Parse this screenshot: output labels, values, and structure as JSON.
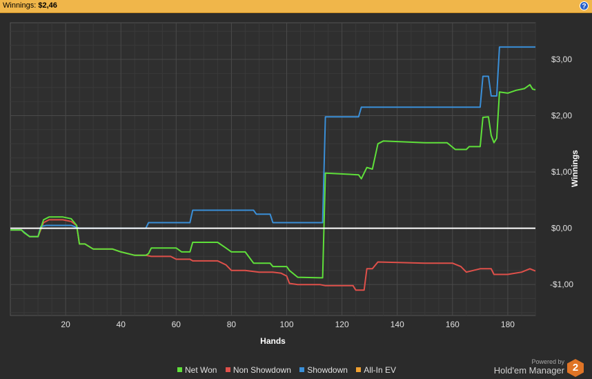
{
  "header": {
    "label": "Winnings:",
    "value": "$2,46",
    "help_icon": "?"
  },
  "brand": {
    "powered_by": "Powered by",
    "name": "Hold'em Manager",
    "logo_text": "2"
  },
  "colors": {
    "net_won": "#5fe03a",
    "non_showdown": "#e0504a",
    "showdown": "#3a8fd8",
    "all_in_ev": "#f0a030",
    "zero_line": "#ffffff",
    "grid": "#4a4a4a",
    "plot_bg": "#2f2f2f"
  },
  "chart_data": {
    "type": "line",
    "xlabel": "Hands",
    "ylabel": "Winnings",
    "xlim": [
      0,
      190
    ],
    "ylim": [
      -1.55,
      3.65
    ],
    "x_ticks": [
      20,
      40,
      60,
      80,
      100,
      120,
      140,
      160,
      180
    ],
    "x_tick_labels": [
      "20",
      "40",
      "60",
      "80",
      "100",
      "120",
      "140",
      "160",
      "180"
    ],
    "y_ticks": [
      -1,
      0,
      1,
      2,
      3
    ],
    "y_tick_labels": [
      "-$1,00",
      "$0,00",
      "$1,00",
      "$2,00",
      "$3,00"
    ],
    "grid": true,
    "legend_position": "bottom-center",
    "series": [
      {
        "name": "Net Won",
        "points": [
          [
            0,
            -0.03
          ],
          [
            4,
            -0.03
          ],
          [
            5,
            -0.08
          ],
          [
            7,
            -0.15
          ],
          [
            10,
            -0.15
          ],
          [
            12,
            0.15
          ],
          [
            14,
            0.2
          ],
          [
            19,
            0.2
          ],
          [
            22,
            0.17
          ],
          [
            24,
            0.05
          ],
          [
            25,
            -0.28
          ],
          [
            27,
            -0.28
          ],
          [
            30,
            -0.37
          ],
          [
            37,
            -0.37
          ],
          [
            40,
            -0.42
          ],
          [
            45,
            -0.48
          ],
          [
            49,
            -0.48
          ],
          [
            50,
            -0.45
          ],
          [
            51,
            -0.35
          ],
          [
            60,
            -0.35
          ],
          [
            62,
            -0.42
          ],
          [
            65,
            -0.42
          ],
          [
            66,
            -0.25
          ],
          [
            75,
            -0.25
          ],
          [
            78,
            -0.35
          ],
          [
            80,
            -0.42
          ],
          [
            85,
            -0.42
          ],
          [
            88,
            -0.62
          ],
          [
            94,
            -0.62
          ],
          [
            95,
            -0.68
          ],
          [
            100,
            -0.68
          ],
          [
            101,
            -0.75
          ],
          [
            104,
            -0.87
          ],
          [
            112,
            -0.88
          ],
          [
            113,
            -0.88
          ],
          [
            114,
            0.98
          ],
          [
            126,
            0.95
          ],
          [
            127,
            0.88
          ],
          [
            129,
            1.08
          ],
          [
            131,
            1.05
          ],
          [
            133,
            1.5
          ],
          [
            135,
            1.55
          ],
          [
            150,
            1.52
          ],
          [
            158,
            1.52
          ],
          [
            159,
            1.48
          ],
          [
            161,
            1.4
          ],
          [
            165,
            1.4
          ],
          [
            166,
            1.45
          ],
          [
            170,
            1.45
          ],
          [
            171,
            1.97
          ],
          [
            173,
            1.98
          ],
          [
            174,
            1.65
          ],
          [
            175,
            1.52
          ],
          [
            176,
            1.6
          ],
          [
            177,
            2.42
          ],
          [
            180,
            2.4
          ],
          [
            183,
            2.45
          ],
          [
            186,
            2.48
          ],
          [
            188,
            2.55
          ],
          [
            189,
            2.47
          ],
          [
            190,
            2.46
          ]
        ]
      },
      {
        "name": "Non Showdown",
        "points": [
          [
            0,
            -0.03
          ],
          [
            4,
            -0.03
          ],
          [
            5,
            -0.08
          ],
          [
            7,
            -0.15
          ],
          [
            10,
            -0.15
          ],
          [
            12,
            0.1
          ],
          [
            14,
            0.15
          ],
          [
            19,
            0.15
          ],
          [
            22,
            0.12
          ],
          [
            24,
            0.05
          ],
          [
            25,
            -0.28
          ],
          [
            27,
            -0.28
          ],
          [
            30,
            -0.37
          ],
          [
            37,
            -0.37
          ],
          [
            40,
            -0.42
          ],
          [
            45,
            -0.48
          ],
          [
            49,
            -0.48
          ],
          [
            51,
            -0.5
          ],
          [
            58,
            -0.5
          ],
          [
            60,
            -0.55
          ],
          [
            65,
            -0.55
          ],
          [
            66,
            -0.58
          ],
          [
            75,
            -0.58
          ],
          [
            78,
            -0.65
          ],
          [
            80,
            -0.75
          ],
          [
            85,
            -0.75
          ],
          [
            90,
            -0.78
          ],
          [
            95,
            -0.78
          ],
          [
            98,
            -0.8
          ],
          [
            100,
            -0.85
          ],
          [
            101,
            -0.98
          ],
          [
            104,
            -1.0
          ],
          [
            112,
            -1.0
          ],
          [
            114,
            -1.02
          ],
          [
            124,
            -1.02
          ],
          [
            125,
            -1.1
          ],
          [
            128,
            -1.1
          ],
          [
            129,
            -0.72
          ],
          [
            131,
            -0.72
          ],
          [
            133,
            -0.6
          ],
          [
            150,
            -0.62
          ],
          [
            160,
            -0.62
          ],
          [
            163,
            -0.68
          ],
          [
            165,
            -0.78
          ],
          [
            170,
            -0.72
          ],
          [
            174,
            -0.72
          ],
          [
            175,
            -0.82
          ],
          [
            180,
            -0.82
          ],
          [
            185,
            -0.78
          ],
          [
            188,
            -0.72
          ],
          [
            190,
            -0.76
          ]
        ]
      },
      {
        "name": "Showdown",
        "points": [
          [
            0,
            -0.03
          ],
          [
            4,
            -0.03
          ],
          [
            7,
            -0.15
          ],
          [
            10,
            -0.15
          ],
          [
            11,
            0.03
          ],
          [
            13,
            0.05
          ],
          [
            22,
            0.05
          ],
          [
            25,
            0.0
          ],
          [
            49,
            0.0
          ],
          [
            50,
            0.1
          ],
          [
            65,
            0.1
          ],
          [
            66,
            0.32
          ],
          [
            88,
            0.32
          ],
          [
            89,
            0.25
          ],
          [
            94,
            0.25
          ],
          [
            95,
            0.1
          ],
          [
            113,
            0.1
          ],
          [
            114,
            1.98
          ],
          [
            126,
            1.98
          ],
          [
            127,
            2.15
          ],
          [
            170,
            2.15
          ],
          [
            171,
            2.7
          ],
          [
            173,
            2.7
          ],
          [
            174,
            2.35
          ],
          [
            176,
            2.35
          ],
          [
            177,
            3.22
          ],
          [
            190,
            3.22
          ]
        ]
      },
      {
        "name": "All-In EV",
        "points": []
      }
    ]
  }
}
